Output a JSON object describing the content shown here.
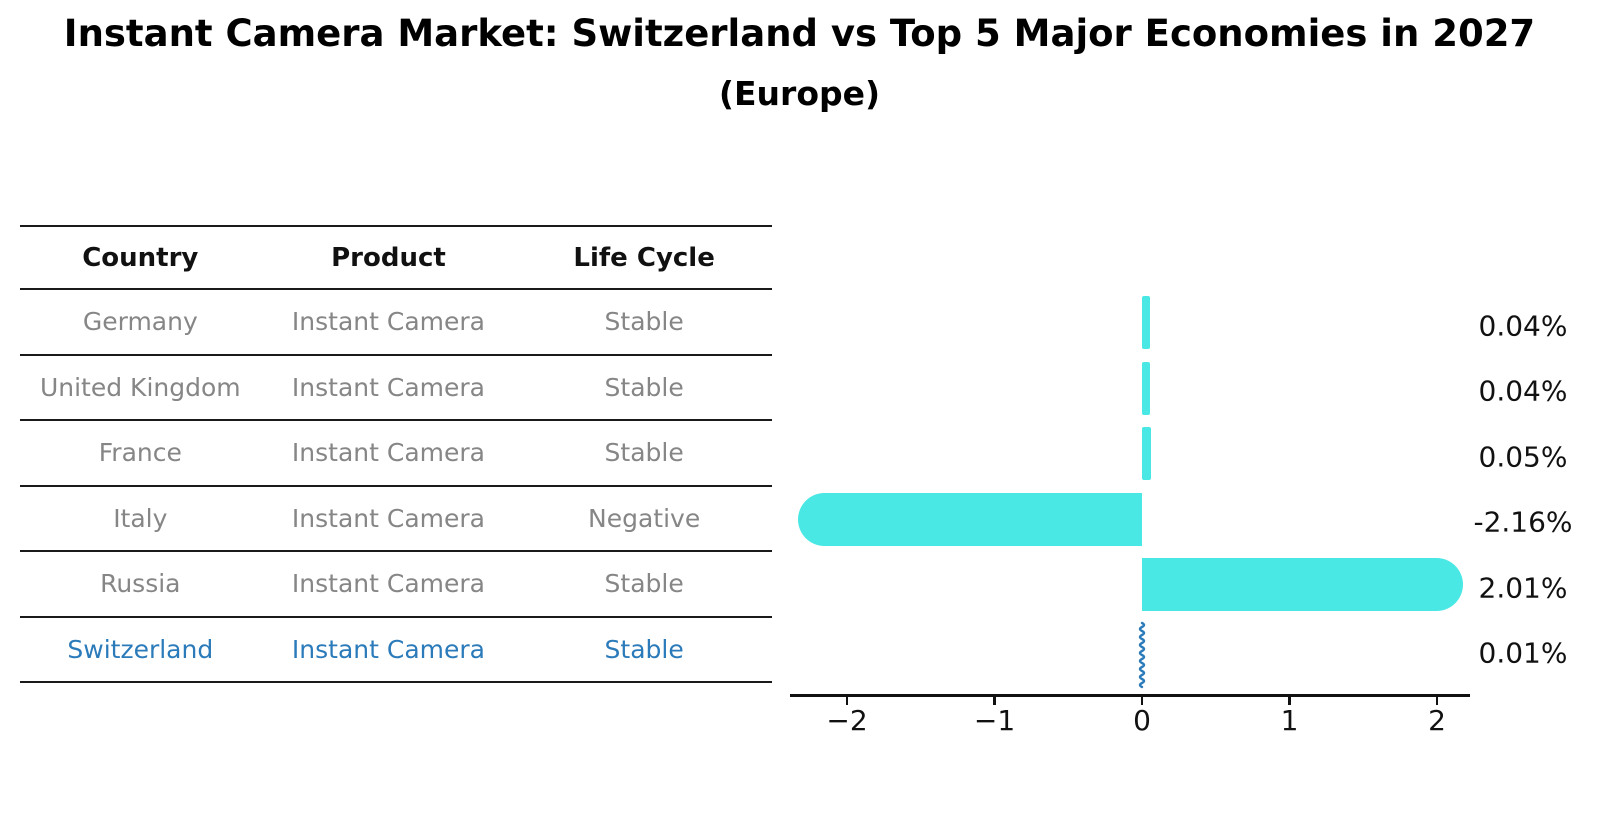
{
  "title": "Instant Camera Market: Switzerland vs Top 5 Major Economies in 2027",
  "subtitle": "(Europe)",
  "colors": {
    "bar": "#4ae8e4",
    "highlight_blue": "#2b7bba",
    "table_text_gray": "#868686",
    "axis_black": "#111111"
  },
  "table": {
    "headers": [
      "Country",
      "Product",
      "Life Cycle"
    ],
    "rows": [
      {
        "country": "Germany",
        "product": "Instant Camera",
        "life_cycle": "Stable",
        "highlighted": false
      },
      {
        "country": "United Kingdom",
        "product": "Instant Camera",
        "life_cycle": "Stable",
        "highlighted": false
      },
      {
        "country": "France",
        "product": "Instant Camera",
        "life_cycle": "Stable",
        "highlighted": false
      },
      {
        "country": "Italy",
        "product": "Instant Camera",
        "life_cycle": "Negative",
        "highlighted": false
      },
      {
        "country": "Russia",
        "product": "Instant Camera",
        "life_cycle": "Stable",
        "highlighted": false
      },
      {
        "country": "Switzerland",
        "product": "Instant Camera",
        "life_cycle": "Stable",
        "highlighted": true
      }
    ]
  },
  "chart_data": {
    "type": "bar",
    "orientation": "horizontal",
    "categories": [
      "Germany",
      "United Kingdom",
      "France",
      "Italy",
      "Russia",
      "Switzerland"
    ],
    "values": [
      0.04,
      0.04,
      0.05,
      -2.16,
      2.01,
      0.01
    ],
    "value_labels": [
      "0.04%",
      "0.04%",
      "0.05%",
      "-2.16%",
      "2.01%",
      "0.01%"
    ],
    "unit": "%",
    "xlim": [
      -2.39,
      2.22
    ],
    "x_ticks": [
      {
        "value": -2,
        "label": "−2"
      },
      {
        "value": -1,
        "label": "−1"
      },
      {
        "value": 0,
        "label": "0"
      },
      {
        "value": 1,
        "label": "1"
      },
      {
        "value": 2,
        "label": "2"
      }
    ],
    "highlight_category": "Switzerland",
    "bar_color": "#4ae8e4",
    "highlight_color": "#2b7bba",
    "grid": false,
    "legend": false
  }
}
